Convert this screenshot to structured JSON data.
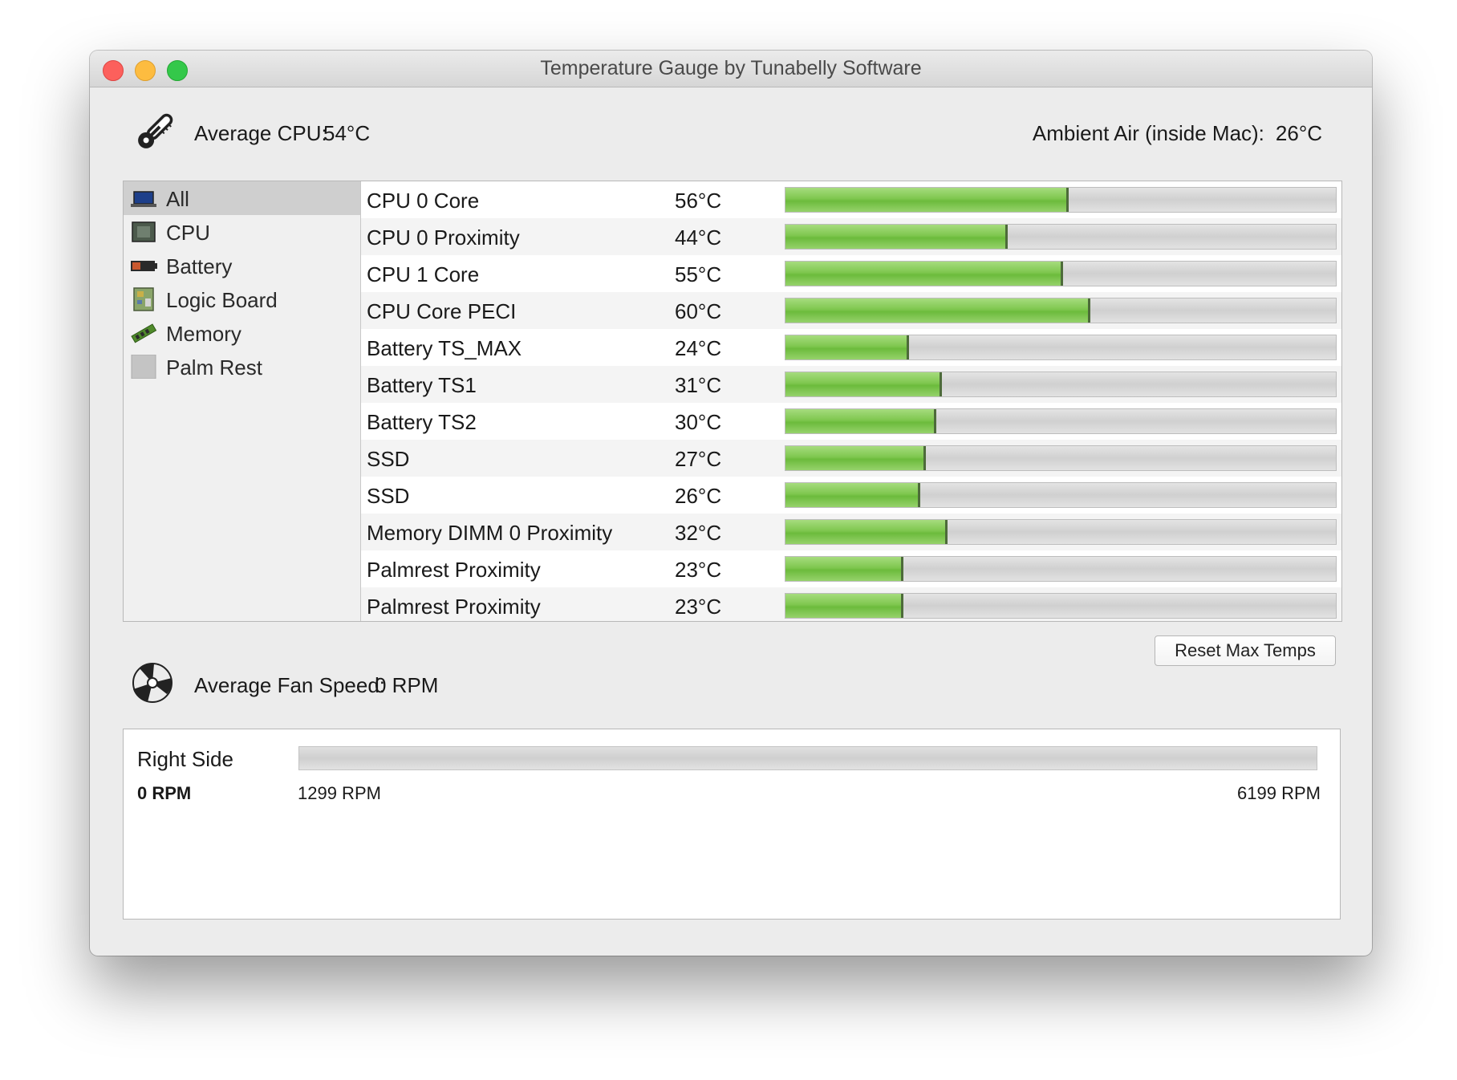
{
  "window": {
    "title": "Temperature Gauge by Tunabelly Software"
  },
  "header": {
    "avg_cpu_label": "Average CPU:",
    "avg_cpu_value": "54°C",
    "ambient_label": "Ambient Air (inside Mac):",
    "ambient_value": "26°C"
  },
  "sidebar": {
    "items": [
      {
        "label": "All",
        "icon": "macbook-icon",
        "selected": true
      },
      {
        "label": "CPU",
        "icon": "cpu-chip-icon",
        "selected": false
      },
      {
        "label": "Battery",
        "icon": "battery-icon",
        "selected": false
      },
      {
        "label": "Logic Board",
        "icon": "logic-board-icon",
        "selected": false
      },
      {
        "label": "Memory",
        "icon": "memory-stick-icon",
        "selected": false
      },
      {
        "label": "Palm Rest",
        "icon": "palm-rest-icon",
        "selected": false
      }
    ]
  },
  "sensors": [
    {
      "name": "CPU 0 Core",
      "value": "56°C",
      "level": 0.51
    },
    {
      "name": "CPU 0 Proximity",
      "value": "44°C",
      "level": 0.4
    },
    {
      "name": "CPU 1 Core",
      "value": "55°C",
      "level": 0.5
    },
    {
      "name": "CPU Core PECI",
      "value": "60°C",
      "level": 0.55
    },
    {
      "name": "Battery TS_MAX",
      "value": "24°C",
      "level": 0.22
    },
    {
      "name": "Battery TS1",
      "value": "31°C",
      "level": 0.28
    },
    {
      "name": "Battery TS2",
      "value": "30°C",
      "level": 0.27
    },
    {
      "name": "SSD",
      "value": "27°C",
      "level": 0.25
    },
    {
      "name": "SSD",
      "value": "26°C",
      "level": 0.24
    },
    {
      "name": "Memory DIMM 0 Proximity",
      "value": "32°C",
      "level": 0.29
    },
    {
      "name": "Palmrest Proximity",
      "value": "23°C",
      "level": 0.21
    },
    {
      "name": "Palmrest Proximity",
      "value": "23°C",
      "level": 0.21
    }
  ],
  "controls": {
    "reset_label": "Reset Max Temps"
  },
  "fan": {
    "avg_label": "Average Fan Speed:",
    "avg_value": "0 RPM",
    "fans": [
      {
        "name": "Right Side",
        "rpm": "0 RPM",
        "min_label": "1299 RPM",
        "max_label": "6199 RPM",
        "level": 0
      }
    ]
  },
  "colors": {
    "bar_fill": "#7fc74f",
    "bar_track": "#d8d8d8",
    "selected_row": "#cfcfcf",
    "close": "#fc605c",
    "minimize": "#fdbc40",
    "maximize": "#34c84a"
  }
}
